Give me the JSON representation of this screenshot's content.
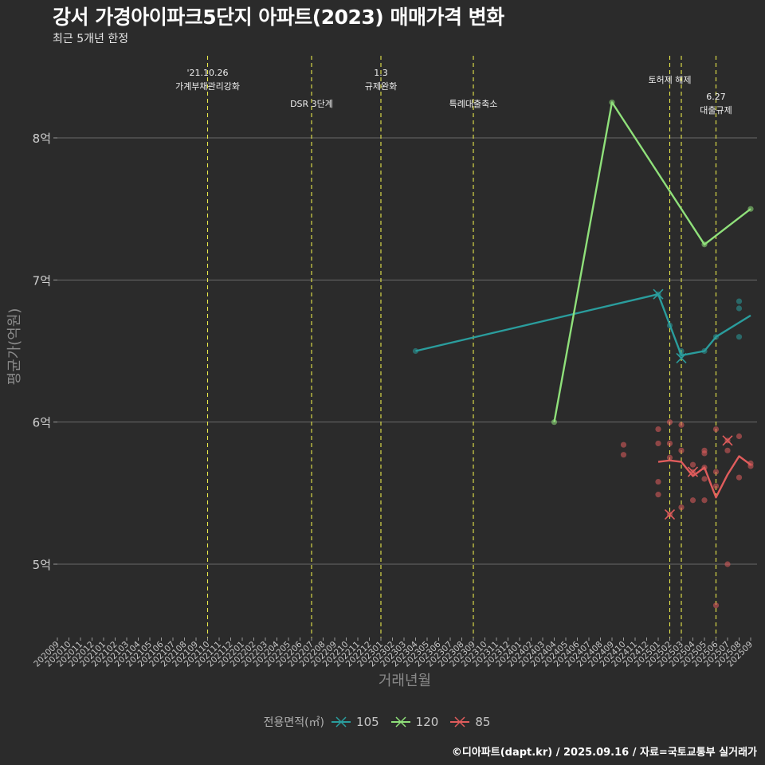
{
  "header": {
    "title": "강서 가경아이파크5단지 아파트(2023) 매매가격 변화",
    "subtitle": "최근 5개년 한정"
  },
  "caption": "©디아파트(dapt.kr) / 2025.09.16 / 자료=국토교통부 실거래가",
  "legend": {
    "title": "전용면적(㎡)",
    "items": [
      {
        "label": "105",
        "color": "#2a9d9d"
      },
      {
        "label": "120",
        "color": "#8fe07a"
      },
      {
        "label": "85",
        "color": "#e05c5c"
      }
    ]
  },
  "chart_data": {
    "type": "line",
    "title": "강서 가경아이파크5단지 아파트(2023) 매매가격 변화",
    "xlabel": "거래년월",
    "ylabel": "평균가(억원)",
    "ylim": [
      4.5,
      8.7
    ],
    "yticks": [
      5,
      6,
      7,
      8
    ],
    "ytick_labels": [
      "5억",
      "6억",
      "7억",
      "8억"
    ],
    "x_months": [
      "202009",
      "202010",
      "202011",
      "202012",
      "202101",
      "202102",
      "202103",
      "202104",
      "202105",
      "202106",
      "202107",
      "202108",
      "202109",
      "202110",
      "202111",
      "202112",
      "202201",
      "202202",
      "202203",
      "202204",
      "202205",
      "202206",
      "202207",
      "202208",
      "202209",
      "202210",
      "202211",
      "202212",
      "202301",
      "202302",
      "202303",
      "202304",
      "202305",
      "202306",
      "202307",
      "202308",
      "202309",
      "202310",
      "202311",
      "202312",
      "202401",
      "202402",
      "202403",
      "202404",
      "202405",
      "202406",
      "202407",
      "202408",
      "202409",
      "202410",
      "202411",
      "202412",
      "202501",
      "202502",
      "202503",
      "202504",
      "202505",
      "202506",
      "202507",
      "202508",
      "202509"
    ],
    "events": [
      {
        "month": "202110",
        "label": "'21.10.26\n가계부채관리강화",
        "level": 1
      },
      {
        "month": "202207",
        "label": "DSR 3단계",
        "level": 2
      },
      {
        "month": "202301",
        "label": "1.3\n규제완화",
        "level": 1
      },
      {
        "month": "202309",
        "label": "특례대출축소",
        "level": 2
      },
      {
        "month": "202502",
        "label": "토허제 해제",
        "level": 1
      },
      {
        "month": "202503",
        "label": "",
        "level": 1
      },
      {
        "month": "202506",
        "label": "6.27\n대출규제",
        "level": 3
      }
    ],
    "series": [
      {
        "name": "105",
        "color": "#2a9d9d",
        "line": [
          [
            "202304",
            6.5
          ],
          [
            "202501",
            6.9
          ],
          [
            "202503",
            6.47
          ],
          [
            "202505",
            6.5
          ],
          [
            "202506",
            6.6
          ],
          [
            "202509",
            6.75
          ]
        ],
        "points": [
          [
            "202304",
            6.5
          ],
          [
            "202501",
            6.9
          ],
          [
            "202502",
            6.68
          ],
          [
            "202503",
            6.47
          ],
          [
            "202503",
            6.5
          ],
          [
            "202505",
            6.5
          ],
          [
            "202506",
            6.6
          ],
          [
            "202508",
            6.85
          ],
          [
            "202508",
            6.8
          ],
          [
            "202508",
            6.6
          ]
        ],
        "cross": [
          [
            "202501",
            6.9
          ],
          [
            "202503",
            6.45
          ]
        ]
      },
      {
        "name": "120",
        "color": "#8fe07a",
        "line": [
          [
            "202404",
            6.0
          ],
          [
            "202409",
            8.25
          ],
          [
            "202505",
            7.25
          ],
          [
            "202509",
            7.5
          ]
        ],
        "points": [
          [
            "202404",
            6.0
          ],
          [
            "202409",
            8.25
          ],
          [
            "202505",
            7.25
          ],
          [
            "202509",
            7.5
          ]
        ],
        "cross": []
      },
      {
        "name": "85",
        "color": "#e05c5c",
        "line": [
          [
            "202501",
            5.72
          ],
          [
            "202502",
            5.73
          ],
          [
            "202503",
            5.72
          ],
          [
            "202504",
            5.62
          ],
          [
            "202505",
            5.68
          ],
          [
            "202506",
            5.47
          ],
          [
            "202507",
            5.63
          ],
          [
            "202508",
            5.76
          ],
          [
            "202509",
            5.7
          ]
        ],
        "points": [
          [
            "202410",
            5.84
          ],
          [
            "202410",
            5.77
          ],
          [
            "202501",
            5.95
          ],
          [
            "202501",
            5.85
          ],
          [
            "202501",
            5.58
          ],
          [
            "202501",
            5.49
          ],
          [
            "202502",
            6.0
          ],
          [
            "202502",
            5.85
          ],
          [
            "202502",
            5.75
          ],
          [
            "202502",
            5.35
          ],
          [
            "202503",
            5.98
          ],
          [
            "202503",
            5.8
          ],
          [
            "202503",
            5.4
          ],
          [
            "202504",
            5.7
          ],
          [
            "202504",
            5.65
          ],
          [
            "202504",
            5.45
          ],
          [
            "202505",
            5.8
          ],
          [
            "202505",
            5.78
          ],
          [
            "202505",
            5.68
          ],
          [
            "202505",
            5.6
          ],
          [
            "202505",
            5.45
          ],
          [
            "202506",
            5.95
          ],
          [
            "202506",
            5.65
          ],
          [
            "202506",
            5.55
          ],
          [
            "202506",
            4.71
          ],
          [
            "202507",
            5.87
          ],
          [
            "202507",
            5.8
          ],
          [
            "202507",
            5.0
          ],
          [
            "202508",
            5.9
          ],
          [
            "202508",
            5.61
          ],
          [
            "202509",
            5.71
          ],
          [
            "202509",
            5.69
          ]
        ],
        "cross": [
          [
            "202502",
            5.35
          ],
          [
            "202504",
            5.65
          ],
          [
            "202507",
            5.87
          ]
        ]
      }
    ]
  }
}
